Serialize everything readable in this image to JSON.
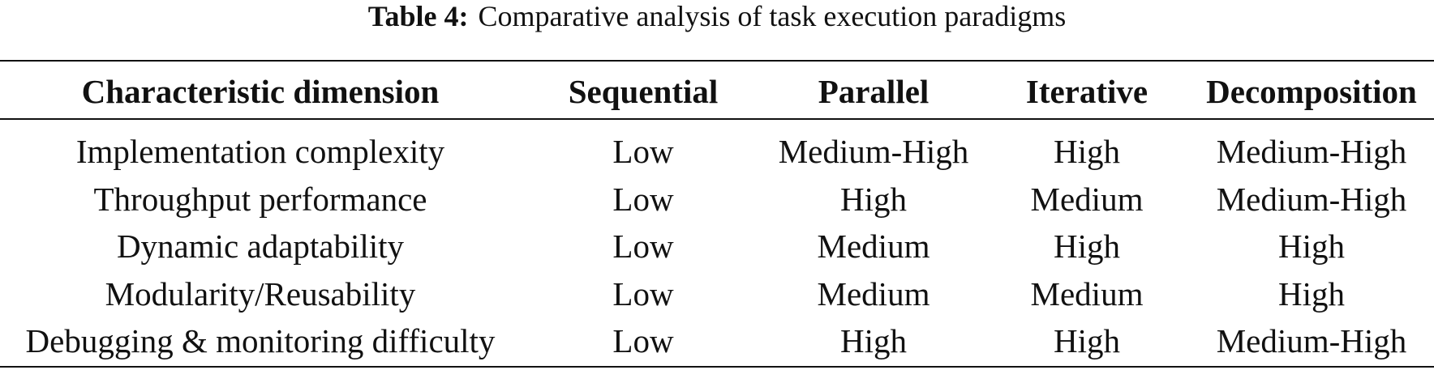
{
  "caption": {
    "label": "Table 4:",
    "text": "Comparative analysis of task execution paradigms"
  },
  "table": {
    "header": [
      "Characteristic dimension",
      "Sequential",
      "Parallel",
      "Iterative",
      "Decomposition"
    ],
    "rows": [
      [
        "Implementation complexity",
        "Low",
        "Medium-High",
        "High",
        "Medium-High"
      ],
      [
        "Throughput performance",
        "Low",
        "High",
        "Medium",
        "Medium-High"
      ],
      [
        "Dynamic adaptability",
        "Low",
        "Medium",
        "High",
        "High"
      ],
      [
        "Modularity/Reusability",
        "Low",
        "Medium",
        "Medium",
        "High"
      ],
      [
        "Debugging & monitoring difficulty",
        "Low",
        "High",
        "High",
        "Medium-High"
      ]
    ]
  }
}
